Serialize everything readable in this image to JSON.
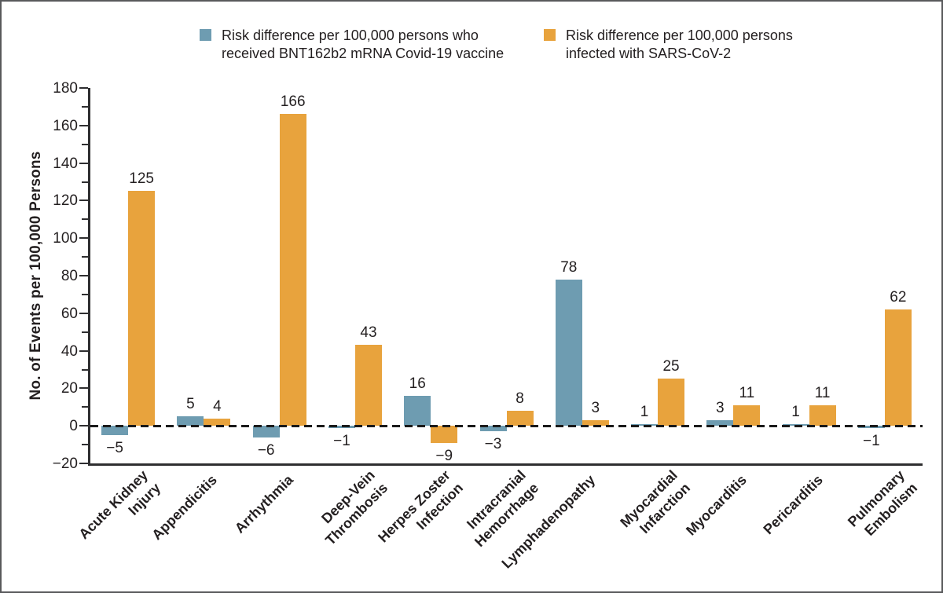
{
  "legend": {
    "items": [
      {
        "name": "vaccine",
        "line1": "Risk difference per 100,000 persons who",
        "line2": "received BNT162b2 mRNA Covid-19 vaccine",
        "color": "#6E9CB1"
      },
      {
        "name": "infection",
        "line1": "Risk difference per 100,000 persons",
        "line2": "infected with SARS-CoV-2",
        "color": "#E8A33D"
      }
    ]
  },
  "chart_data": {
    "type": "bar",
    "title": "",
    "xlabel": "",
    "ylabel": "No. of Events per 100,000 Persons",
    "ylim": [
      -20,
      180
    ],
    "ytick_step_major": 20,
    "ytick_step_minor": 10,
    "ytick_labels": [
      -20,
      0,
      20,
      40,
      60,
      80,
      100,
      120,
      140,
      160,
      180
    ],
    "grid": false,
    "zero_line_style": "dashed",
    "legend_position": "top",
    "categories": [
      "Acute Kidney\nInjury",
      "Appendicitis",
      "Arrhythmia",
      "Deep-Vein\nThrombosis",
      "Herpes Zoster\nInfection",
      "Intracranial\nHemorrhage",
      "Lymphadenopathy",
      "Myocardial\nInfarction",
      "Myocarditis",
      "Pericarditis",
      "Pulmonary\nEmbolism"
    ],
    "series": [
      {
        "name": "Risk difference per 100,000 persons who received BNT162b2 mRNA Covid-19 vaccine",
        "color": "#6E9CB1",
        "values": [
          -5,
          5,
          -6,
          -1,
          16,
          -3,
          78,
          1,
          3,
          1,
          -1
        ]
      },
      {
        "name": "Risk difference per 100,000 persons infected with SARS-CoV-2",
        "color": "#E8A33D",
        "values": [
          125,
          4,
          166,
          43,
          -9,
          8,
          3,
          25,
          11,
          11,
          62
        ]
      }
    ]
  },
  "colors": {
    "vaccine_bar": "#6E9CB1",
    "infection_bar": "#E8A33D",
    "text": "#231F20",
    "axis": "#2E2E30",
    "frame_border": "#58595B",
    "background": "#FFFFFF"
  }
}
